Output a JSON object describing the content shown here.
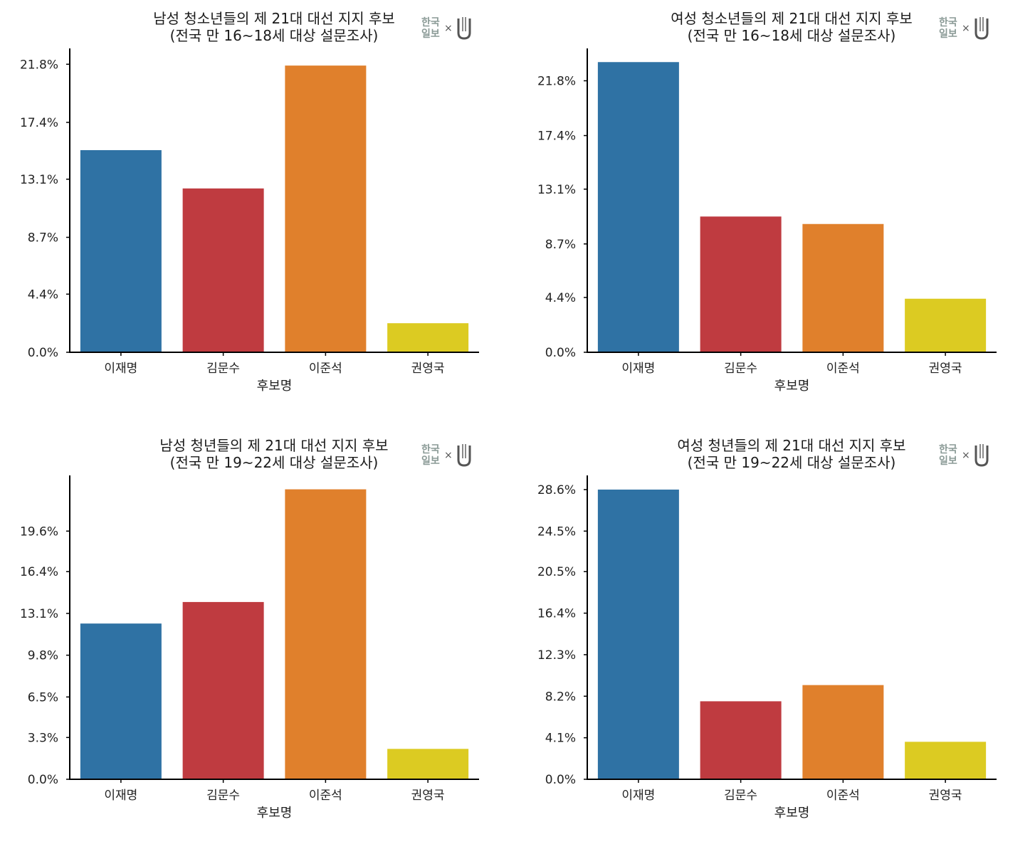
{
  "logo": {
    "text_top": "한국",
    "text_bottom": "일보",
    "separator": "×"
  },
  "colors": {
    "이재명": "#2f72a4",
    "김문수": "#bf3b40",
    "이준석": "#e0802c",
    "권영국": "#dccb22"
  },
  "chart_data": [
    {
      "type": "bar",
      "title": [
        "남성 청소년들의 제 21대 대선 지지 후보",
        "(전국 만 16~18세 대상 설문조사)"
      ],
      "xlabel": "후보명",
      "ylabel": "",
      "categories": [
        "이재명",
        "김문수",
        "이준석",
        "권영국"
      ],
      "values": [
        15.3,
        12.4,
        21.7,
        2.2
      ],
      "yticks": [
        0.0,
        4.4,
        8.7,
        13.1,
        17.4,
        21.8
      ],
      "ytick_labels": [
        "0.0%",
        "4.4%",
        "8.7%",
        "13.1%",
        "17.4%",
        "21.8%"
      ],
      "ylim": [
        0,
        23.0
      ]
    },
    {
      "type": "bar",
      "title": [
        "여성 청소년들의 제 21대 대선 지지 후보",
        "(전국 만 16~18세 대상 설문조사)"
      ],
      "xlabel": "후보명",
      "ylabel": "",
      "categories": [
        "이재명",
        "김문수",
        "이준석",
        "권영국"
      ],
      "values": [
        23.3,
        10.9,
        10.3,
        4.3
      ],
      "yticks": [
        0.0,
        4.4,
        8.7,
        13.1,
        17.4,
        21.8
      ],
      "ytick_labels": [
        "0.0%",
        "4.4%",
        "8.7%",
        "13.1%",
        "17.4%",
        "21.8%"
      ],
      "ylim": [
        0,
        24.4
      ]
    },
    {
      "type": "bar",
      "title": [
        "남성 청년들의 제 21대 대선 지지 후보",
        "(전국 만 19~22세 대상 설문조사)"
      ],
      "xlabel": "후보명",
      "ylabel": "",
      "categories": [
        "이재명",
        "김문수",
        "이준석",
        "권영국"
      ],
      "values": [
        12.3,
        14.0,
        22.9,
        2.4
      ],
      "yticks": [
        0.0,
        3.3,
        6.5,
        9.8,
        13.1,
        16.4,
        19.6
      ],
      "ytick_labels": [
        "0.0%",
        "3.3%",
        "6.5%",
        "9.8%",
        "13.1%",
        "16.4%",
        "19.6%"
      ],
      "ylim": [
        0,
        24.0
      ]
    },
    {
      "type": "bar",
      "title": [
        "여성 청년들의 제 21대 대선 지지 후보",
        "(전국 만 19~22세 대상 설문조사)"
      ],
      "xlabel": "후보명",
      "ylabel": "",
      "categories": [
        "이재명",
        "김문수",
        "이준석",
        "권영국"
      ],
      "values": [
        28.6,
        7.7,
        9.3,
        3.7
      ],
      "yticks": [
        0.0,
        4.1,
        8.2,
        12.3,
        16.4,
        20.5,
        24.5,
        28.6
      ],
      "ytick_labels": [
        "0.0%",
        "4.1%",
        "8.2%",
        "12.3%",
        "16.4%",
        "20.5%",
        "24.5%",
        "28.6%"
      ],
      "ylim": [
        0,
        30.0
      ]
    }
  ]
}
